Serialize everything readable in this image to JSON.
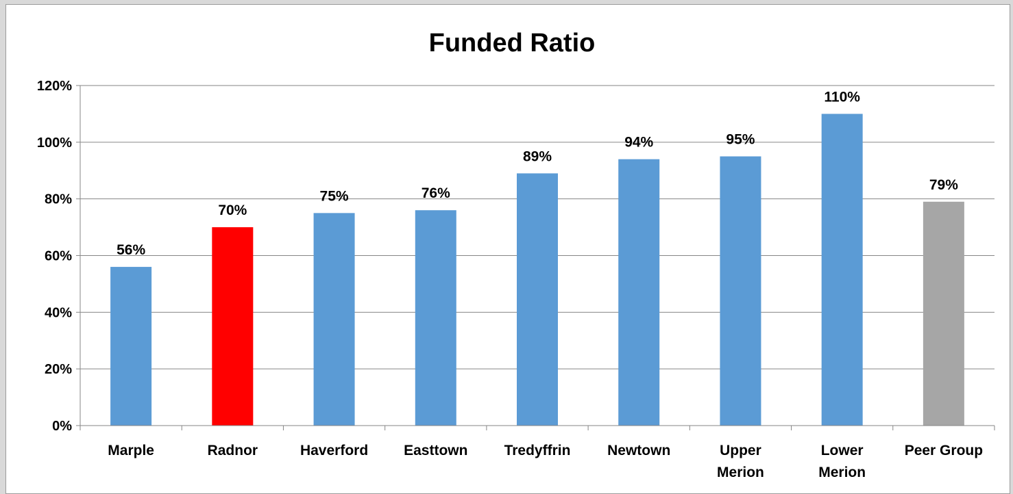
{
  "chart_data": {
    "type": "bar",
    "title": "Funded Ratio",
    "xlabel": "",
    "ylabel": "",
    "categories": [
      "Marple",
      "Radnor",
      "Haverford",
      "Easttown",
      "Tredyffrin",
      "Newtown",
      "Upper Merion",
      "Lower Merion",
      "Peer Group"
    ],
    "values": [
      56,
      70,
      75,
      76,
      89,
      94,
      95,
      110,
      79
    ],
    "data_labels": [
      "56%",
      "70%",
      "75%",
      "76%",
      "89%",
      "94%",
      "95%",
      "110%",
      "79%"
    ],
    "bar_colors": [
      "#5b9bd5",
      "#ff0000",
      "#5b9bd5",
      "#5b9bd5",
      "#5b9bd5",
      "#5b9bd5",
      "#5b9bd5",
      "#5b9bd5",
      "#a6a6a6"
    ],
    "ylim": [
      0,
      120
    ],
    "y_ticks": [
      0,
      20,
      40,
      60,
      80,
      100,
      120
    ],
    "y_tick_labels": [
      "0%",
      "20%",
      "40%",
      "60%",
      "80%",
      "100%",
      "120%"
    ],
    "grid": true,
    "legend": "none"
  }
}
